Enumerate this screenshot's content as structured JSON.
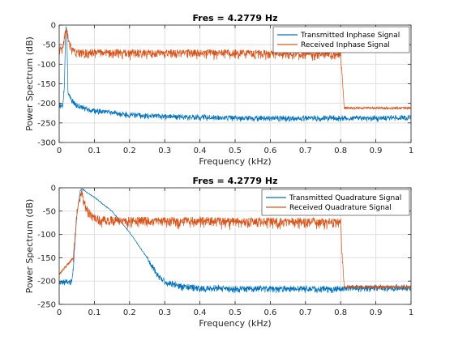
{
  "chart_data": [
    {
      "type": "line",
      "title": "Fres = 4.2779 Hz",
      "xlabel": "Frequency (kHz)",
      "ylabel": "Power Spectrum (dB)",
      "xlim": [
        0,
        1
      ],
      "ylim": [
        -300,
        0
      ],
      "xticks": [
        0,
        0.1,
        0.2,
        0.3,
        0.4,
        0.5,
        0.6,
        0.7,
        0.8,
        0.9,
        1
      ],
      "xtick_labels": [
        "0",
        "0.1",
        "0.2",
        "0.3",
        "0.4",
        "0.5",
        "0.6",
        "0.7",
        "0.8",
        "0.9",
        "1"
      ],
      "yticks": [
        -300,
        -250,
        -200,
        -150,
        -100,
        -50,
        0
      ],
      "ytick_labels": [
        "-300",
        "-250",
        "-200",
        "-150",
        "-100",
        "-50",
        "0"
      ],
      "grid": true,
      "legend": "top-right",
      "series": [
        {
          "name": "Transmitted Inphase Signal",
          "color": "#0072BD",
          "x": [
            0,
            0.01,
            0.015,
            0.018,
            0.02,
            0.022,
            0.025,
            0.03,
            0.04,
            0.05,
            0.07,
            0.1,
            0.15,
            0.2,
            0.25,
            0.3,
            0.4,
            0.5,
            0.6,
            0.7,
            0.8,
            0.9,
            1
          ],
          "y": [
            -205,
            -205,
            -150,
            -20,
            -2,
            -30,
            -170,
            -180,
            -195,
            -205,
            -210,
            -218,
            -222,
            -228,
            -230,
            -232,
            -234,
            -236,
            -236,
            -236,
            -236,
            -236,
            -235
          ]
        },
        {
          "name": "Received Inphase Signal",
          "color": "#D95319",
          "x": [
            0,
            0.008,
            0.012,
            0.016,
            0.02,
            0.024,
            0.03,
            0.04,
            0.06,
            0.1,
            0.2,
            0.3,
            0.4,
            0.5,
            0.6,
            0.7,
            0.78,
            0.8,
            0.805,
            0.81,
            0.9,
            1
          ],
          "y": [
            -58,
            -55,
            -45,
            -20,
            -5,
            -20,
            -45,
            -60,
            -65,
            -65,
            -66,
            -66,
            -66,
            -66,
            -68,
            -68,
            -70,
            -72,
            -140,
            -212,
            -212,
            -212
          ]
        }
      ]
    },
    {
      "type": "line",
      "title": "Fres = 4.2779 Hz",
      "xlabel": "Frequency (kHz)",
      "ylabel": "Power Spectrum (dB)",
      "xlim": [
        0,
        1
      ],
      "ylim": [
        -250,
        0
      ],
      "xticks": [
        0,
        0.1,
        0.2,
        0.3,
        0.4,
        0.5,
        0.6,
        0.7,
        0.8,
        0.9,
        1
      ],
      "xtick_labels": [
        "0",
        "0.1",
        "0.2",
        "0.3",
        "0.4",
        "0.5",
        "0.6",
        "0.7",
        "0.8",
        "0.9",
        "1"
      ],
      "yticks": [
        -250,
        -200,
        -150,
        -100,
        -50,
        0
      ],
      "ytick_labels": [
        "-250",
        "-200",
        "-150",
        "-100",
        "-50",
        "0"
      ],
      "grid": true,
      "legend": "top-right",
      "series": [
        {
          "name": "Transmitted Quadrature Signal",
          "color": "#0072BD",
          "x": [
            0,
            0.035,
            0.04,
            0.05,
            0.06,
            0.065,
            0.08,
            0.1,
            0.15,
            0.2,
            0.25,
            0.28,
            0.3,
            0.35,
            0.4,
            0.5,
            0.6,
            0.7,
            0.8,
            0.85,
            0.9,
            1
          ],
          "y": [
            -200,
            -200,
            -170,
            -60,
            -5,
            -2,
            -10,
            -20,
            -50,
            -95,
            -150,
            -185,
            -200,
            -210,
            -213,
            -215,
            -215,
            -215,
            -215,
            -213,
            -213,
            -213
          ]
        },
        {
          "name": "Received Quadrature Signal",
          "color": "#D95319",
          "x": [
            0,
            0.04,
            0.05,
            0.06,
            0.065,
            0.07,
            0.08,
            0.1,
            0.12,
            0.15,
            0.2,
            0.3,
            0.4,
            0.5,
            0.6,
            0.7,
            0.8,
            0.805,
            0.81,
            0.85,
            0.9,
            1
          ],
          "y": [
            -185,
            -150,
            -50,
            -15,
            -5,
            -20,
            -45,
            -60,
            -65,
            -65,
            -66,
            -66,
            -66,
            -68,
            -68,
            -68,
            -70,
            -150,
            -212,
            -213,
            -213,
            -213
          ]
        }
      ]
    }
  ]
}
